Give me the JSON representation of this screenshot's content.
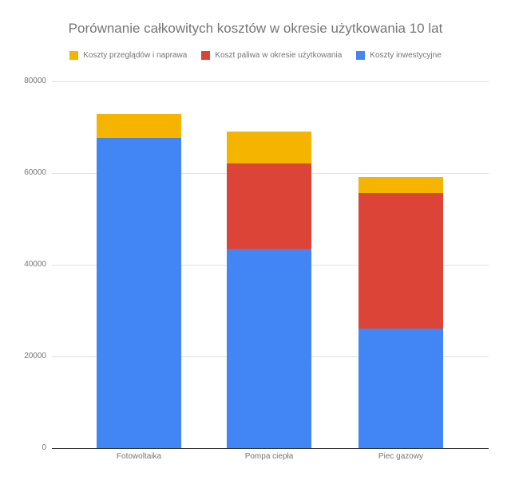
{
  "chart_data": {
    "type": "bar",
    "stacked": true,
    "title": "Porównanie całkowitych kosztów w okresie użytkowania 10 lat",
    "xlabel": "",
    "ylabel": "",
    "ylim": [
      0,
      80000
    ],
    "yticks": [
      "0",
      "20000",
      "40000",
      "60000",
      "80000"
    ],
    "grid": true,
    "legend_position": "top",
    "categories": [
      "Fotowoltaika",
      "Pompa ciepła",
      "Piec gazowy"
    ],
    "series": [
      {
        "name": "Koszty inwestycyjne",
        "color": "#4285f4",
        "values": [
          67700,
          43500,
          26100
        ]
      },
      {
        "name": "Koszt paliwa w okresie użytkowania",
        "color": "#db4437",
        "values": [
          0,
          18600,
          29600
        ]
      },
      {
        "name": "Koszty przeglądów i naprawa",
        "color": "#f4b400",
        "values": [
          5200,
          7000,
          3400
        ]
      }
    ]
  },
  "legend": [
    {
      "label": "Koszty przeglądów i naprawa",
      "color": "#f4b400"
    },
    {
      "label": "Koszt paliwa w okresie użytkowania",
      "color": "#db4437"
    },
    {
      "label": "Koszty inwestycyjne",
      "color": "#4285f4"
    }
  ]
}
